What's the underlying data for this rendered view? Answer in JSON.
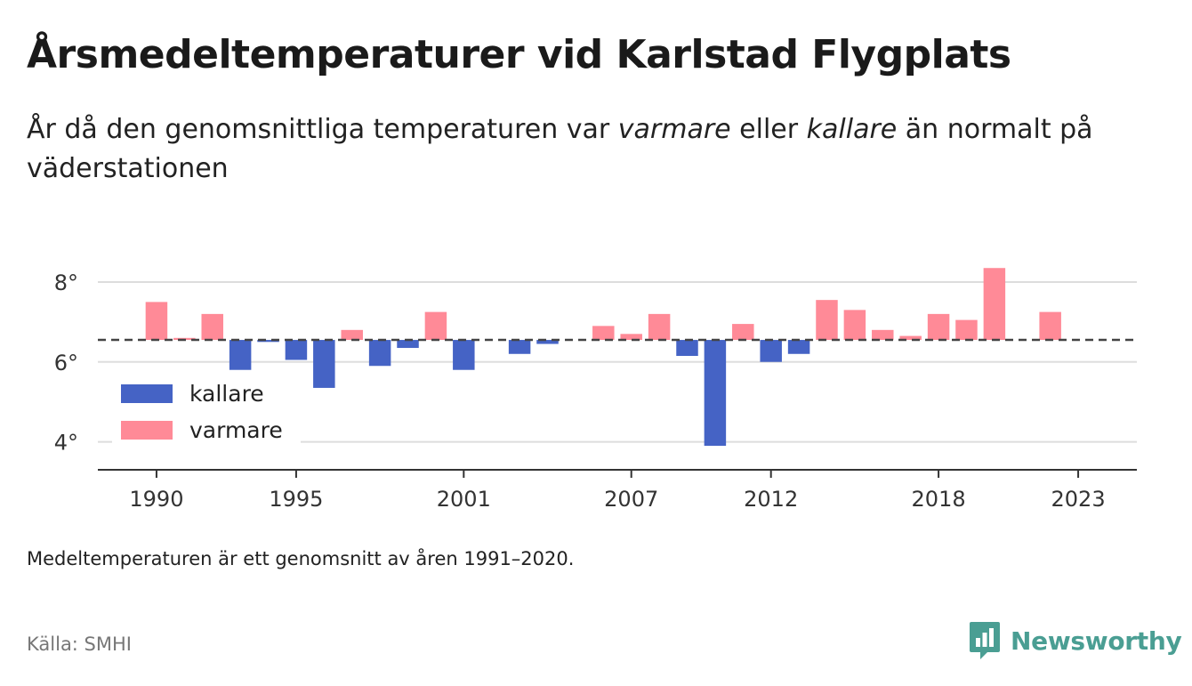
{
  "title_part1": "Årsmedeltemperaturer vid Karlstad Flygplats",
  "subtitle_a": "År då den genomsnittliga temperaturen var ",
  "subtitle_warm": "varmare",
  "subtitle_b": " eller ",
  "subtitle_cold": "kallare",
  "subtitle_c": " än normalt på väderstationen",
  "note": "Medeltemperaturen är ett genomsnitt av åren 1991–2020.",
  "source": "Källa: SMHI",
  "brand": "Newsworthy",
  "colors": {
    "warmer": "#ff8a97",
    "colder": "#4563c5",
    "brand": "#4a9e93"
  },
  "chart_data": {
    "type": "bar",
    "baseline": 6.55,
    "ylim": [
      3.3,
      8.6
    ],
    "yticks": [
      4,
      6,
      8
    ],
    "ytick_labels": [
      "4°",
      "6°",
      "8°"
    ],
    "xlim": [
      1987.9,
      2025.1
    ],
    "xticks": [
      1990,
      1995,
      2001,
      2007,
      2012,
      2018,
      2023
    ],
    "xtick_labels": [
      "1990",
      "1995",
      "2001",
      "2007",
      "2012",
      "2018",
      "2023"
    ],
    "legend": {
      "position": "lower-left",
      "entries": [
        {
          "key": "colder",
          "label": "kallare"
        },
        {
          "key": "warmer",
          "label": "varmare"
        }
      ]
    },
    "x": [
      1990,
      1991,
      1992,
      1993,
      1994,
      1995,
      1996,
      1997,
      1998,
      1999,
      2000,
      2001,
      2003,
      2004,
      2006,
      2007,
      2008,
      2009,
      2010,
      2011,
      2012,
      2013,
      2014,
      2015,
      2016,
      2017,
      2018,
      2019,
      2020,
      2022
    ],
    "values": [
      7.5,
      6.6,
      7.2,
      5.8,
      6.5,
      6.05,
      5.35,
      6.8,
      5.9,
      6.35,
      7.25,
      5.8,
      6.2,
      6.45,
      6.9,
      6.7,
      7.2,
      6.15,
      3.9,
      6.95,
      6.0,
      6.2,
      7.55,
      7.3,
      6.8,
      6.65,
      7.2,
      7.05,
      8.35,
      7.25
    ]
  }
}
